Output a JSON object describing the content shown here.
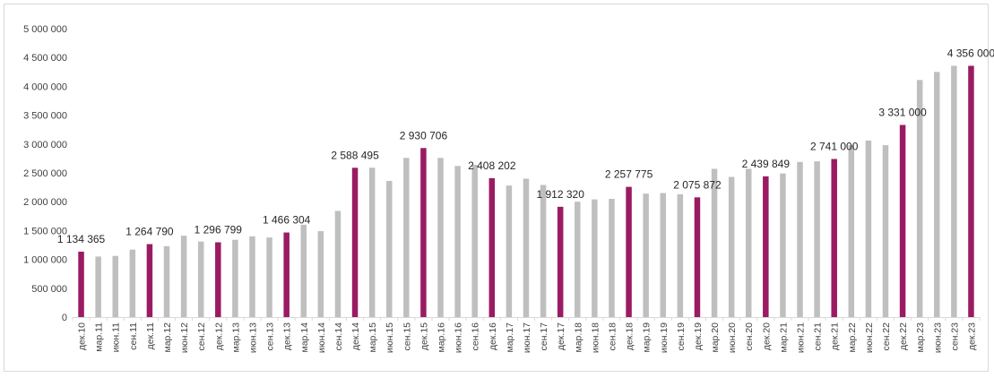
{
  "chart_data": {
    "type": "bar",
    "title": "",
    "xlabel": "",
    "ylabel": "",
    "ylim": [
      0,
      5000000
    ],
    "yticks": [
      0,
      500000,
      1000000,
      1500000,
      2000000,
      2500000,
      3000000,
      3500000,
      4000000,
      4500000,
      5000000
    ],
    "ytick_labels": [
      "0",
      "500 000",
      "1 000 000",
      "1 500 000",
      "2 000 000",
      "2 500 000",
      "3 000 000",
      "3 500 000",
      "4 000 000",
      "4 500 000",
      "5 000 000"
    ],
    "grid": false,
    "legend": "none",
    "colors": {
      "highlight": "#9b1b63",
      "regular": "#bfbfbf"
    },
    "categories": [
      "дек.10",
      "мар.11",
      "июн.11",
      "сен.11",
      "дек.11",
      "мар.12",
      "июн.12",
      "сен.12",
      "дек.12",
      "мар.13",
      "июн.13",
      "сен.13",
      "дек.13",
      "мар.14",
      "июн.14",
      "сен.14",
      "дек.14",
      "мар.15",
      "июн.15",
      "сен.15",
      "дек.15",
      "мар.16",
      "июн.16",
      "сен.16",
      "дек.16",
      "мар.17",
      "июн.17",
      "сен.17",
      "дек.17",
      "мар.18",
      "июн.18",
      "сен.18",
      "дек.18",
      "мар.19",
      "июн.19",
      "сен.19",
      "дек.19",
      "мар.20",
      "июн.20",
      "сен.20",
      "дек.20",
      "мар.21",
      "июн.21",
      "сен.21",
      "дек.21",
      "мар.22",
      "июн.22",
      "сен.22",
      "дек.22",
      "мар.23",
      "июн.23",
      "сен.23",
      "дек.23"
    ],
    "values": [
      1134365,
      1050000,
      1060000,
      1170000,
      1264790,
      1230000,
      1410000,
      1310000,
      1296799,
      1340000,
      1400000,
      1380000,
      1466304,
      1600000,
      1490000,
      1840000,
      2588495,
      2590000,
      2360000,
      2760000,
      2930706,
      2760000,
      2620000,
      2640000,
      2408202,
      2280000,
      2400000,
      2290000,
      1912320,
      2000000,
      2040000,
      2050000,
      2257775,
      2140000,
      2150000,
      2130000,
      2075872,
      2570000,
      2430000,
      2570000,
      2439849,
      2490000,
      2690000,
      2700000,
      2741000,
      2980000,
      3060000,
      2980000,
      3331000,
      4110000,
      4250000,
      4356000,
      4356000
    ],
    "highlight": [
      true,
      false,
      false,
      false,
      true,
      false,
      false,
      false,
      true,
      false,
      false,
      false,
      true,
      false,
      false,
      false,
      true,
      false,
      false,
      false,
      true,
      false,
      false,
      false,
      true,
      false,
      false,
      false,
      true,
      false,
      false,
      false,
      true,
      false,
      false,
      false,
      true,
      false,
      false,
      false,
      true,
      false,
      false,
      false,
      true,
      false,
      false,
      false,
      true,
      false,
      false,
      false,
      true
    ],
    "data_labels": [
      "1 134 365",
      "",
      "",
      "",
      "1 264 790",
      "",
      "",
      "",
      "1 296 799",
      "",
      "",
      "",
      "1 466 304",
      "",
      "",
      "",
      "2 588 495",
      "",
      "",
      "",
      "2 930 706",
      "",
      "",
      "",
      "2 408 202",
      "",
      "",
      "",
      "1 912 320",
      "",
      "",
      "",
      "2 257 775",
      "",
      "",
      "",
      "2 075 872",
      "",
      "",
      "",
      "2 439 849",
      "",
      "",
      "",
      "2 741 000",
      "",
      "",
      "",
      "3 331 000",
      "",
      "",
      "",
      "4 356 000"
    ]
  }
}
